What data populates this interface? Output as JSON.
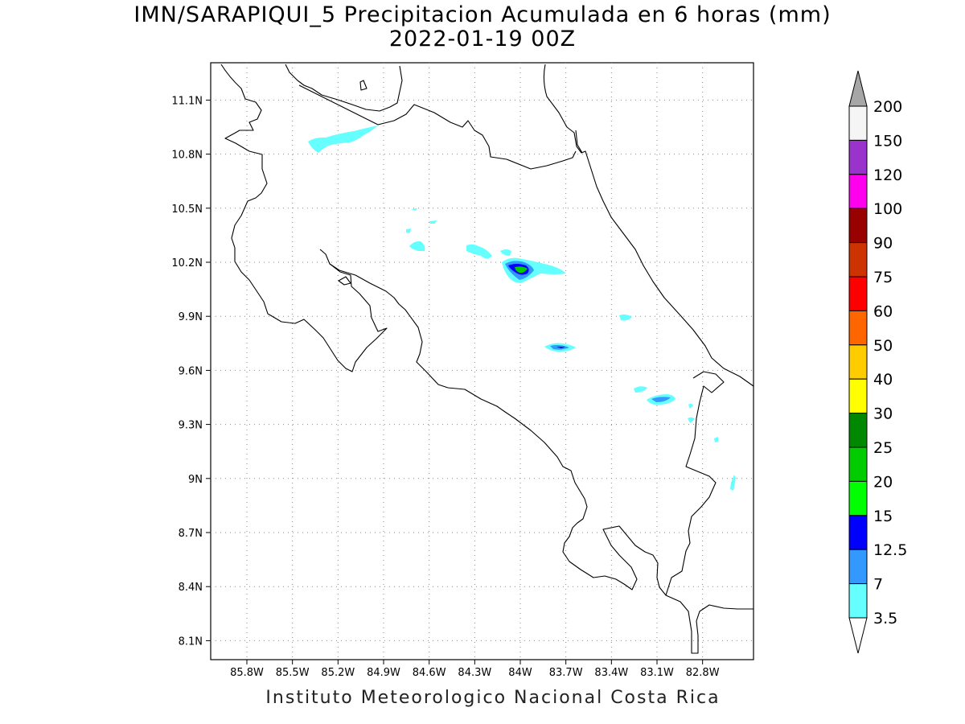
{
  "title": {
    "line1": "IMN/SARAPIQUI_5 Precipitacion Acumulada en 6 horas (mm)",
    "line2": "2022-01-19 00Z"
  },
  "credit": "Instituto Meteorologico Nacional Costa Rica",
  "map": {
    "lon_range": [
      -86.0,
      -82.6
    ],
    "lat_range": [
      8.0,
      11.3
    ],
    "lon_ticks": [
      -85.8,
      -85.5,
      -85.2,
      -84.9,
      -84.6,
      -84.3,
      -84.0,
      -83.7,
      -83.4,
      -83.1,
      -82.8
    ],
    "lon_tick_labels": [
      "85.8W",
      "85.5W",
      "85.2W",
      "84.9W",
      "84.6W",
      "84.3W",
      "84W",
      "83.7W",
      "83.4W",
      "83.1W",
      "82.8W"
    ],
    "lat_ticks": [
      11.1,
      10.8,
      10.5,
      10.2,
      9.9,
      9.6,
      9.3,
      9.0,
      8.7,
      8.4,
      8.1
    ],
    "lat_tick_labels": [
      "11.1N",
      "10.8N",
      "10.5N",
      "10.2N",
      "9.9N",
      "9.6N",
      "9.3N",
      "9N",
      "8.7N",
      "8.4N",
      "8.1N"
    ],
    "grid": "dotted"
  },
  "legend": {
    "labels": [
      "200",
      "150",
      "120",
      "100",
      "90",
      "75",
      "60",
      "50",
      "40",
      "30",
      "25",
      "20",
      "15",
      "12.5",
      "7",
      "3.5"
    ],
    "colors": [
      "#f5f5f5",
      "#9a33cc",
      "#ff00ee",
      "#990000",
      "#cc3300",
      "#ff0000",
      "#ff6600",
      "#ffcc00",
      "#ffff00",
      "#008800",
      "#00cc00",
      "#00ff00",
      "#0000ff",
      "#3399ff",
      "#66ffff"
    ],
    "top_arrow_color": "#a6a6a6",
    "bottom_arrow_color": "#ffffff"
  }
}
